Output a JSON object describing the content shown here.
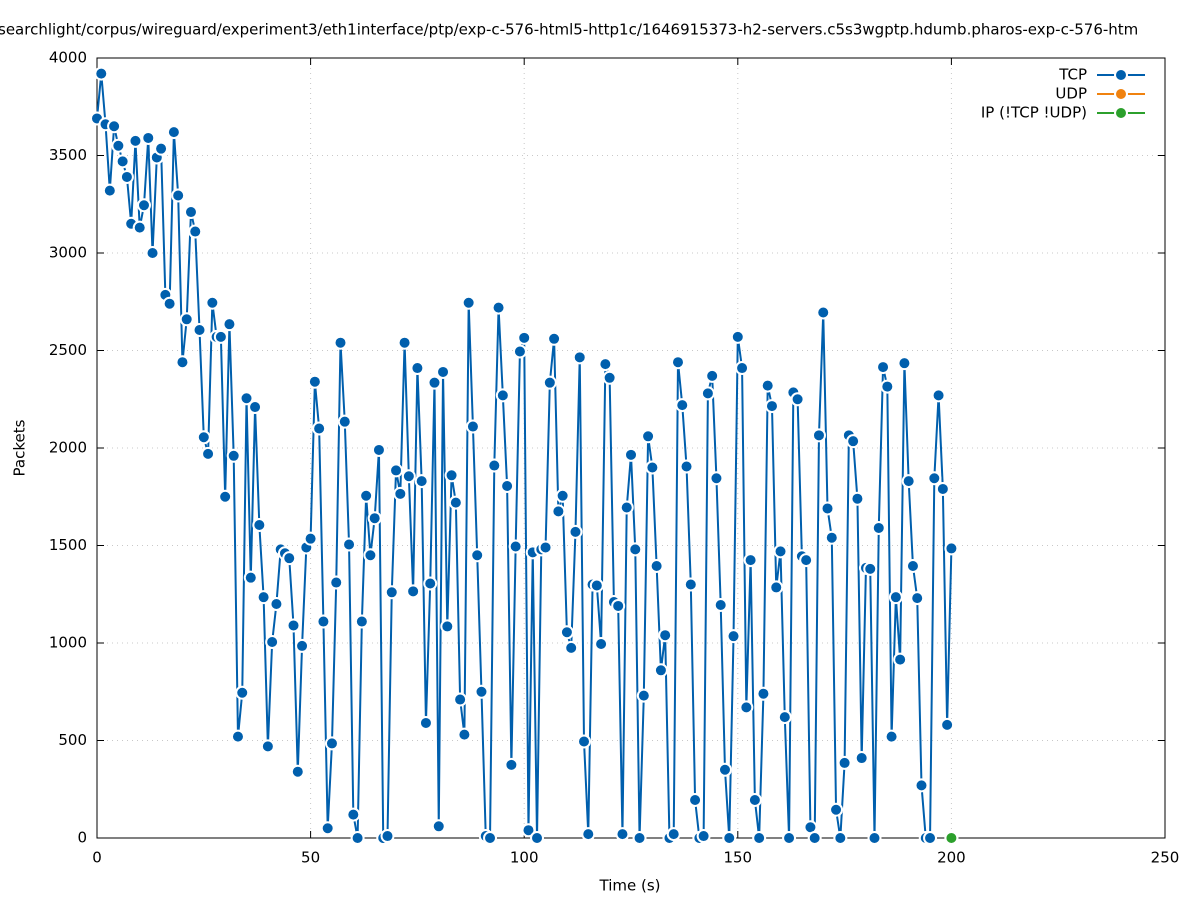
{
  "chart_data": {
    "type": "line",
    "title": "searchlight/corpus/wireguard/experiment3/eth1interface/ptp/exp-c-576-html5-http1c/1646915373-h2-servers.c5s3wgptp.hdumb.pharos-exp-c-576-htm",
    "xlabel": "Time (s)",
    "ylabel": "Packets",
    "xlim": [
      0,
      250
    ],
    "xticks": [
      0,
      50,
      100,
      150,
      200,
      250
    ],
    "ylim": [
      0,
      4000
    ],
    "yticks": [
      0,
      500,
      1000,
      1500,
      2000,
      2500,
      3000,
      3500,
      4000
    ],
    "grid": true,
    "legend": "top-right",
    "series": [
      {
        "name": "TCP",
        "color": "#005fad",
        "x": [
          0,
          1,
          2,
          3,
          4,
          5,
          6,
          7,
          8,
          9,
          10,
          11,
          12,
          13,
          14,
          15,
          16,
          17,
          18,
          19,
          20,
          21,
          22,
          23,
          24,
          25,
          26,
          27,
          28,
          29,
          30,
          31,
          32,
          33,
          34,
          35,
          36,
          37,
          38,
          39,
          40,
          41,
          42,
          43,
          44,
          45,
          46,
          47,
          48,
          49,
          50,
          51,
          52,
          53,
          54,
          55,
          56,
          57,
          58,
          59,
          60,
          61,
          62,
          63,
          64,
          65,
          66,
          67,
          68,
          69,
          70,
          71,
          72,
          73,
          74,
          75,
          76,
          77,
          78,
          79,
          80,
          81,
          82,
          83,
          84,
          85,
          86,
          87,
          88,
          89,
          90,
          91,
          92,
          93,
          94,
          95,
          96,
          97,
          98,
          99,
          100,
          101,
          102,
          103,
          104,
          105,
          106,
          107,
          108,
          109,
          110,
          111,
          112,
          113,
          114,
          115,
          116,
          117,
          118,
          119,
          120,
          121,
          122,
          123,
          124,
          125,
          126,
          127,
          128,
          129,
          130,
          131,
          132,
          133,
          134,
          135,
          136,
          137,
          138,
          139,
          140,
          141,
          142,
          143,
          144,
          145,
          146,
          147,
          148,
          149,
          150,
          151,
          152,
          153,
          154,
          155,
          156,
          157,
          158,
          159,
          160,
          161,
          162,
          163,
          164,
          165,
          166,
          167,
          168,
          169,
          170,
          171,
          172,
          173,
          174,
          175,
          176,
          177,
          178,
          179,
          180,
          181,
          182,
          183,
          184,
          185,
          186,
          187,
          188,
          189,
          190,
          191,
          192,
          193,
          194,
          195,
          196,
          197,
          198,
          199,
          200
        ],
        "values": [
          3690,
          3920,
          3660,
          3320,
          3650,
          3550,
          3470,
          3390,
          3150,
          3575,
          3130,
          3245,
          3590,
          3000,
          3490,
          3535,
          2785,
          2740,
          3620,
          3295,
          2440,
          2660,
          3210,
          3110,
          2605,
          2055,
          1970,
          2745,
          2570,
          2570,
          1750,
          2635,
          1960,
          520,
          745,
          2255,
          1335,
          2210,
          1605,
          1235,
          470,
          1005,
          1200,
          1480,
          1460,
          1435,
          1090,
          340,
          985,
          1490,
          1535,
          2340,
          2100,
          1110,
          50,
          485,
          1310,
          2540,
          2135,
          1505,
          120,
          0,
          1110,
          1755,
          1450,
          1640,
          1990,
          0,
          10,
          1260,
          1885,
          1765,
          2540,
          1855,
          1265,
          2410,
          1830,
          590,
          1305,
          2335,
          60,
          2390,
          1085,
          1860,
          1720,
          710,
          530,
          2745,
          2110,
          1450,
          750,
          10,
          0,
          1910,
          2720,
          2270,
          1805,
          375,
          1495,
          2495,
          2565,
          40,
          1465,
          0,
          1480,
          1490,
          2335,
          2560,
          1675,
          1755,
          1055,
          975,
          1570,
          2465,
          495,
          20,
          1300,
          1295,
          995,
          2430,
          2360,
          1210,
          1190,
          20,
          1695,
          1965,
          1480,
          0,
          730,
          2060,
          1900,
          1395,
          860,
          1040,
          0,
          20,
          2440,
          2220,
          1905,
          1300,
          195,
          0,
          10,
          2280,
          2370,
          1845,
          1195,
          350,
          0,
          1035,
          2570,
          2410,
          670,
          1425,
          195,
          0,
          740,
          2320,
          2215,
          1285,
          1470,
          620,
          0,
          2285,
          2250,
          1445,
          1425,
          55,
          0,
          2065,
          2695,
          1690,
          1540,
          145,
          0,
          385,
          2065,
          2035,
          1740,
          410,
          1385,
          1380,
          0,
          1590,
          2415,
          2315,
          520,
          1235,
          915,
          2435,
          1830,
          1395,
          1230,
          270,
          0,
          0,
          1845,
          2270,
          1790,
          580,
          1485
        ]
      },
      {
        "name": "UDP",
        "color": "#f0820f",
        "x": [
          200
        ],
        "values": [
          0
        ]
      },
      {
        "name": "IP (!TCP  !UDP)",
        "color": "#2ca02c",
        "x": [
          200
        ],
        "values": [
          0
        ]
      }
    ]
  }
}
